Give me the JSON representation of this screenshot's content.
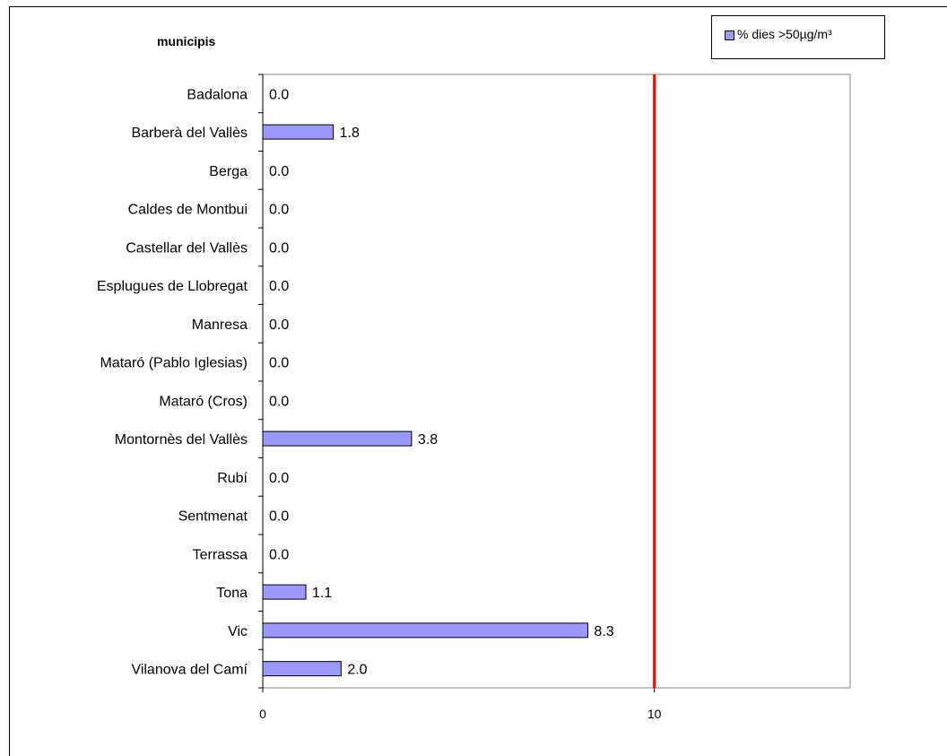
{
  "chart_data": {
    "type": "bar",
    "orientation": "horizontal",
    "title": "municipis",
    "categories": [
      "Badalona",
      "Barberà del Vallès",
      "Berga",
      "Caldes de Montbui",
      "Castellar del Vallès",
      "Esplugues de Llobregat",
      "Manresa",
      "Mataró (Pablo Iglesias)",
      "Mataró (Cros)",
      "Montornès del Vallès",
      "Rubí",
      "Sentmenat",
      "Terrassa",
      "Tona",
      "Vic",
      "Vilanova del Camí"
    ],
    "series": [
      {
        "name": "% dies >50µg/m³",
        "values": [
          0.0,
          1.8,
          0.0,
          0.0,
          0.0,
          0.0,
          0.0,
          0.0,
          0.0,
          3.8,
          0.0,
          0.0,
          0.0,
          1.1,
          8.3,
          2.0
        ],
        "value_labels": [
          "0.0",
          "1.8",
          "0.0",
          "0.0",
          "0.0",
          "0.0",
          "0.0",
          "0.0",
          "0.0",
          "3.8",
          "0.0",
          "0.0",
          "0.0",
          "1.1",
          "8.3",
          "2.0"
        ],
        "color": "#9999ff"
      }
    ],
    "xlim": [
      0,
      15
    ],
    "x_ticks": [
      0,
      10
    ],
    "reference_line": {
      "value": 10,
      "color": "#ff0000"
    },
    "legend_position": "top-right",
    "grid": false
  }
}
